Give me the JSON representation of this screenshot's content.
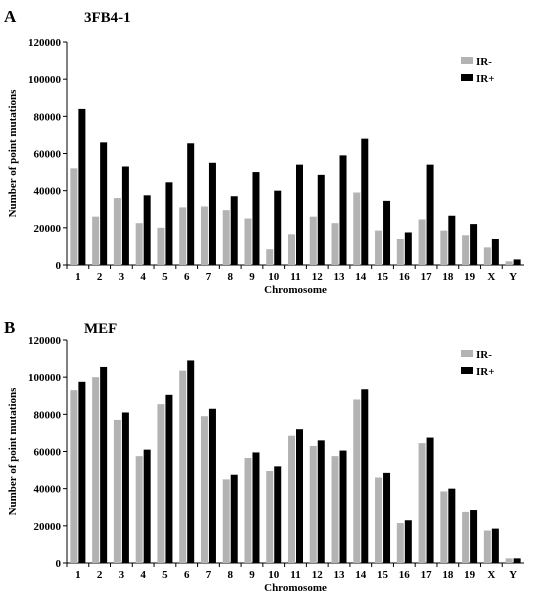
{
  "chart_data": [
    {
      "type": "bar",
      "panel_label": "A",
      "title": "3FB4-1",
      "xlabel": "Chromosome",
      "ylabel": "Number of point mutations",
      "ylim": [
        0,
        120000
      ],
      "yticks": [
        "0",
        "20000",
        "40000",
        "60000",
        "80000",
        "100000",
        "120000"
      ],
      "categories": [
        "1",
        "2",
        "3",
        "4",
        "5",
        "6",
        "7",
        "8",
        "9",
        "10",
        "11",
        "12",
        "13",
        "14",
        "15",
        "16",
        "17",
        "18",
        "19",
        "X",
        "Y"
      ],
      "legend_position": "top-right",
      "series": [
        {
          "name": "IR-",
          "color": "#b3b3b3",
          "values": [
            52000,
            26000,
            36000,
            22500,
            20000,
            31000,
            31500,
            29500,
            25000,
            8500,
            16500,
            26000,
            22500,
            39000,
            18500,
            14000,
            24500,
            18500,
            16000,
            9500,
            2000
          ]
        },
        {
          "name": "IR+",
          "color": "#000000",
          "values": [
            84000,
            66000,
            53000,
            37500,
            44500,
            65500,
            55000,
            37000,
            50000,
            40000,
            54000,
            48500,
            59000,
            68000,
            34500,
            17500,
            54000,
            26500,
            22000,
            14000,
            3000
          ]
        }
      ]
    },
    {
      "type": "bar",
      "panel_label": "B",
      "title": "MEF",
      "xlabel": "Chromosome",
      "ylabel": "Number of point mutations",
      "ylim": [
        0,
        120000
      ],
      "yticks": [
        "0",
        "20000",
        "40000",
        "60000",
        "80000",
        "100000",
        "120000"
      ],
      "categories": [
        "1",
        "2",
        "3",
        "4",
        "5",
        "6",
        "7",
        "8",
        "9",
        "10",
        "11",
        "12",
        "13",
        "14",
        "15",
        "16",
        "17",
        "18",
        "19",
        "X",
        "Y"
      ],
      "legend_position": "top-right",
      "series": [
        {
          "name": "IR-",
          "color": "#b3b3b3",
          "values": [
            93000,
            100000,
            77000,
            57500,
            85500,
            103500,
            79000,
            45000,
            56500,
            49500,
            68500,
            63000,
            57500,
            88000,
            46000,
            21500,
            64500,
            38500,
            27500,
            17500,
            2500
          ]
        },
        {
          "name": "IR+",
          "color": "#000000",
          "values": [
            97500,
            105500,
            81000,
            61000,
            90500,
            109000,
            83000,
            47500,
            59500,
            52000,
            72000,
            66000,
            60500,
            93500,
            48500,
            23000,
            67500,
            40000,
            28500,
            18500,
            2500
          ]
        }
      ]
    }
  ]
}
